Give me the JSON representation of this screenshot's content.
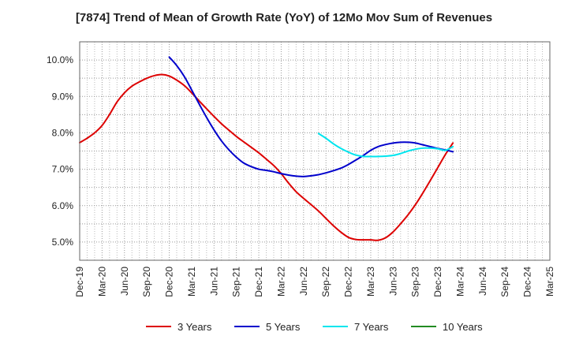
{
  "chart_data": {
    "type": "line",
    "title": "[7874]  Trend of Mean of Growth Rate (YoY) of 12Mo Mov Sum of Revenues",
    "xlabel": "",
    "ylabel": "",
    "categories": [
      "Dec-19",
      "Mar-20",
      "Jun-20",
      "Sep-20",
      "Dec-20",
      "Mar-21",
      "Jun-21",
      "Sep-21",
      "Dec-21",
      "Mar-22",
      "Jun-22",
      "Sep-22",
      "Dec-22",
      "Mar-23",
      "Jun-23",
      "Sep-23",
      "Dec-23",
      "Mar-24",
      "Jun-24",
      "Sep-24",
      "Dec-24",
      "Mar-25"
    ],
    "ylim": [
      4.5,
      10.5
    ],
    "yticks": [
      5.0,
      6.0,
      7.0,
      8.0,
      9.0,
      10.0
    ],
    "ytick_labels": [
      "5.0%",
      "6.0%",
      "7.0%",
      "8.0%",
      "9.0%",
      "10.0%"
    ],
    "grid": true,
    "legend_position": "bottom",
    "series": [
      {
        "name": "3 Years",
        "color": "#dd0000",
        "points": [
          {
            "x": 0,
            "y": 7.73
          },
          {
            "x": 0.33,
            "y": 7.85
          },
          {
            "x": 0.67,
            "y": 8.0
          },
          {
            "x": 1,
            "y": 8.2
          },
          {
            "x": 1.33,
            "y": 8.5
          },
          {
            "x": 1.67,
            "y": 8.85
          },
          {
            "x": 2,
            "y": 9.1
          },
          {
            "x": 2.33,
            "y": 9.28
          },
          {
            "x": 2.67,
            "y": 9.4
          },
          {
            "x": 3,
            "y": 9.5
          },
          {
            "x": 3.33,
            "y": 9.57
          },
          {
            "x": 3.67,
            "y": 9.6
          },
          {
            "x": 4,
            "y": 9.56
          },
          {
            "x": 4.33,
            "y": 9.45
          },
          {
            "x": 4.67,
            "y": 9.3
          },
          {
            "x": 5,
            "y": 9.1
          },
          {
            "x": 5.33,
            "y": 8.88
          },
          {
            "x": 5.67,
            "y": 8.66
          },
          {
            "x": 6,
            "y": 8.45
          },
          {
            "x": 6.33,
            "y": 8.25
          },
          {
            "x": 6.67,
            "y": 8.07
          },
          {
            "x": 7,
            "y": 7.9
          },
          {
            "x": 7.33,
            "y": 7.75
          },
          {
            "x": 7.67,
            "y": 7.6
          },
          {
            "x": 8,
            "y": 7.45
          },
          {
            "x": 8.33,
            "y": 7.28
          },
          {
            "x": 8.67,
            "y": 7.1
          },
          {
            "x": 9,
            "y": 6.88
          },
          {
            "x": 9.33,
            "y": 6.62
          },
          {
            "x": 9.67,
            "y": 6.38
          },
          {
            "x": 10,
            "y": 6.2
          },
          {
            "x": 10.33,
            "y": 6.03
          },
          {
            "x": 10.67,
            "y": 5.85
          },
          {
            "x": 11,
            "y": 5.65
          },
          {
            "x": 11.33,
            "y": 5.45
          },
          {
            "x": 11.67,
            "y": 5.27
          },
          {
            "x": 12,
            "y": 5.13
          },
          {
            "x": 12.33,
            "y": 5.07
          },
          {
            "x": 12.67,
            "y": 5.06
          },
          {
            "x": 13,
            "y": 5.06
          },
          {
            "x": 13.33,
            "y": 5.05
          },
          {
            "x": 13.67,
            "y": 5.12
          },
          {
            "x": 14,
            "y": 5.28
          },
          {
            "x": 14.33,
            "y": 5.5
          },
          {
            "x": 14.67,
            "y": 5.75
          },
          {
            "x": 15,
            "y": 6.03
          },
          {
            "x": 15.33,
            "y": 6.35
          },
          {
            "x": 15.67,
            "y": 6.7
          },
          {
            "x": 16,
            "y": 7.05
          },
          {
            "x": 16.33,
            "y": 7.4
          },
          {
            "x": 16.67,
            "y": 7.72
          }
        ]
      },
      {
        "name": "5 Years",
        "color": "#0000cc",
        "points": [
          {
            "x": 4,
            "y": 10.08
          },
          {
            "x": 4.33,
            "y": 9.85
          },
          {
            "x": 4.67,
            "y": 9.55
          },
          {
            "x": 5,
            "y": 9.18
          },
          {
            "x": 5.33,
            "y": 8.8
          },
          {
            "x": 5.67,
            "y": 8.42
          },
          {
            "x": 6,
            "y": 8.08
          },
          {
            "x": 6.33,
            "y": 7.78
          },
          {
            "x": 6.67,
            "y": 7.53
          },
          {
            "x": 7,
            "y": 7.33
          },
          {
            "x": 7.33,
            "y": 7.17
          },
          {
            "x": 7.67,
            "y": 7.07
          },
          {
            "x": 8,
            "y": 7.0
          },
          {
            "x": 8.33,
            "y": 6.97
          },
          {
            "x": 8.67,
            "y": 6.93
          },
          {
            "x": 9,
            "y": 6.88
          },
          {
            "x": 9.33,
            "y": 6.84
          },
          {
            "x": 9.67,
            "y": 6.81
          },
          {
            "x": 10,
            "y": 6.8
          },
          {
            "x": 10.33,
            "y": 6.82
          },
          {
            "x": 10.67,
            "y": 6.85
          },
          {
            "x": 11,
            "y": 6.9
          },
          {
            "x": 11.33,
            "y": 6.96
          },
          {
            "x": 11.67,
            "y": 7.03
          },
          {
            "x": 12,
            "y": 7.13
          },
          {
            "x": 12.33,
            "y": 7.25
          },
          {
            "x": 12.67,
            "y": 7.38
          },
          {
            "x": 13,
            "y": 7.52
          },
          {
            "x": 13.33,
            "y": 7.62
          },
          {
            "x": 13.67,
            "y": 7.68
          },
          {
            "x": 14,
            "y": 7.72
          },
          {
            "x": 14.33,
            "y": 7.74
          },
          {
            "x": 14.67,
            "y": 7.74
          },
          {
            "x": 15,
            "y": 7.72
          },
          {
            "x": 15.33,
            "y": 7.67
          },
          {
            "x": 15.67,
            "y": 7.62
          },
          {
            "x": 16,
            "y": 7.57
          },
          {
            "x": 16.33,
            "y": 7.53
          },
          {
            "x": 16.67,
            "y": 7.48
          }
        ]
      },
      {
        "name": "7 Years",
        "color": "#00e5ee",
        "points": [
          {
            "x": 10.67,
            "y": 7.98
          },
          {
            "x": 11,
            "y": 7.85
          },
          {
            "x": 11.33,
            "y": 7.7
          },
          {
            "x": 11.67,
            "y": 7.57
          },
          {
            "x": 12,
            "y": 7.47
          },
          {
            "x": 12.33,
            "y": 7.39
          },
          {
            "x": 12.67,
            "y": 7.35
          },
          {
            "x": 13,
            "y": 7.35
          },
          {
            "x": 13.33,
            "y": 7.35
          },
          {
            "x": 13.67,
            "y": 7.36
          },
          {
            "x": 14,
            "y": 7.38
          },
          {
            "x": 14.33,
            "y": 7.43
          },
          {
            "x": 14.67,
            "y": 7.5
          },
          {
            "x": 15,
            "y": 7.55
          },
          {
            "x": 15.33,
            "y": 7.58
          },
          {
            "x": 15.67,
            "y": 7.58
          },
          {
            "x": 16,
            "y": 7.56
          },
          {
            "x": 16.33,
            "y": 7.52
          },
          {
            "x": 16.67,
            "y": 7.62
          }
        ]
      },
      {
        "name": "10 Years",
        "color": "#228b22",
        "points": []
      }
    ]
  }
}
